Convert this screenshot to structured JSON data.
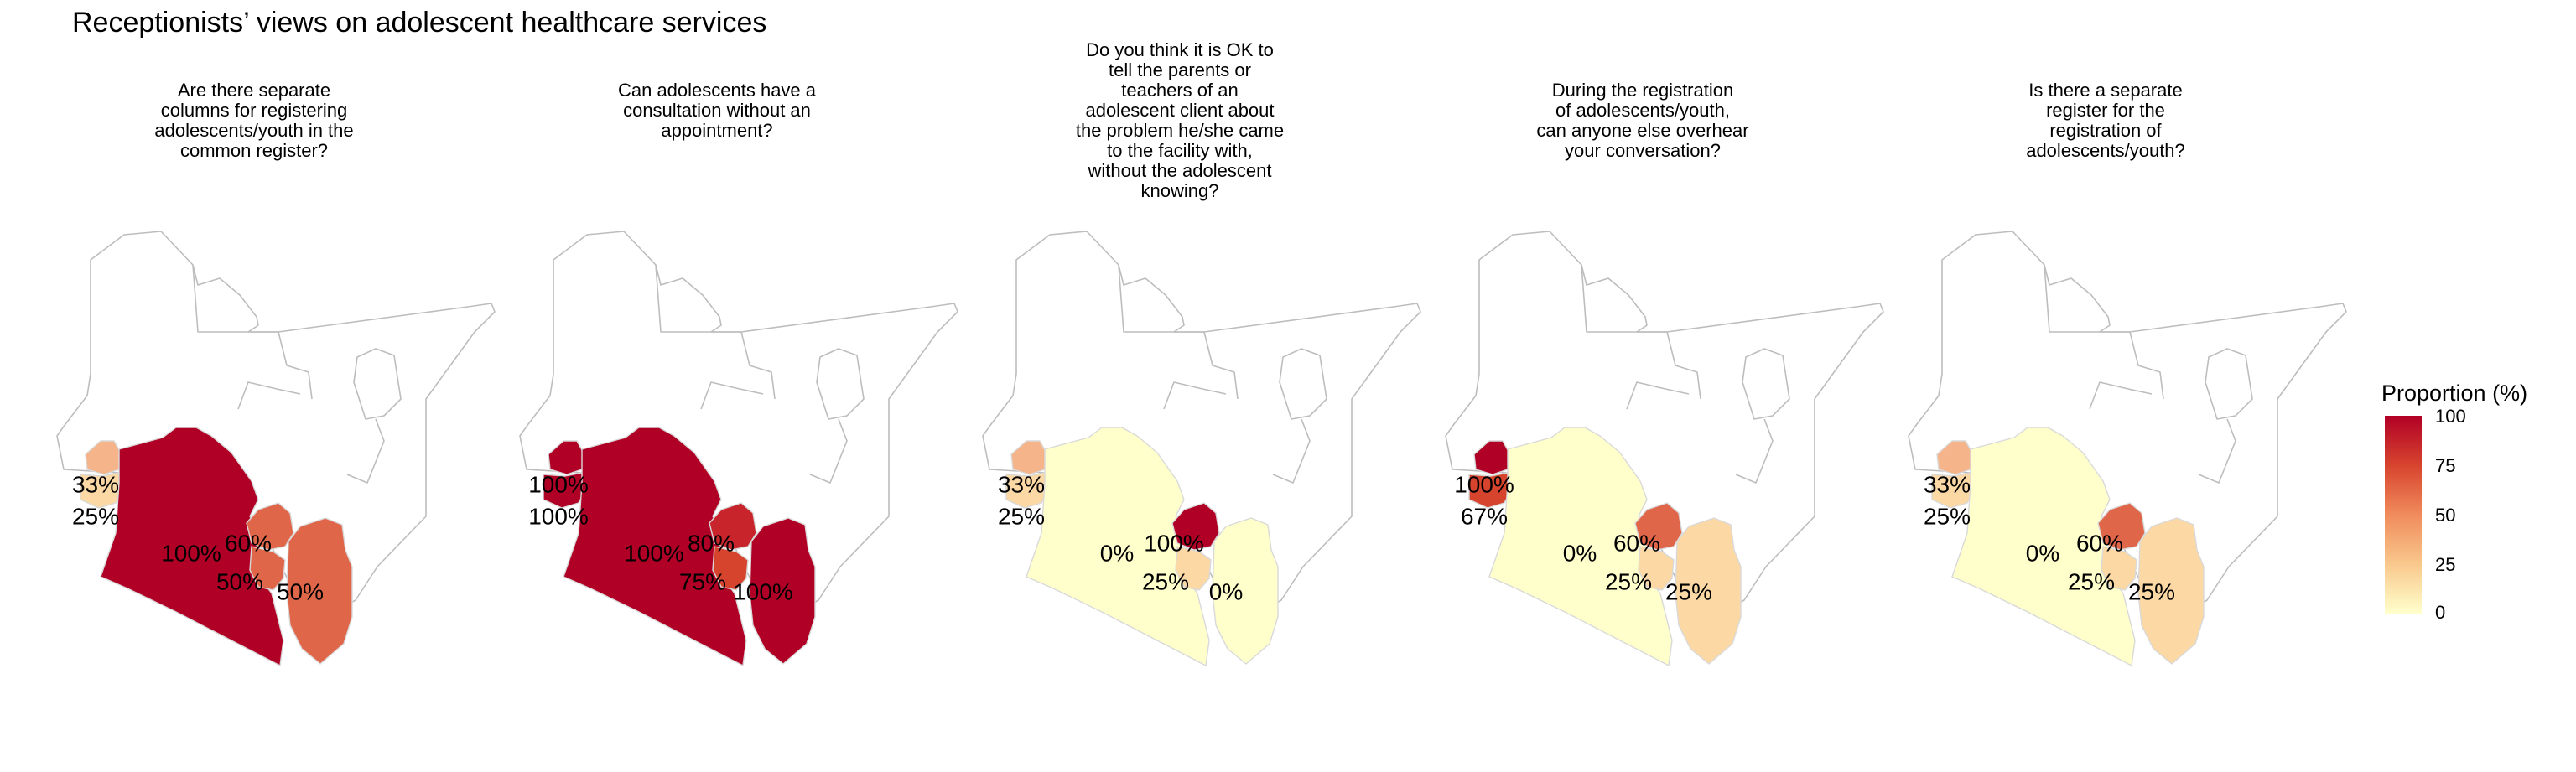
{
  "title": "Receptionists’ views on adolescent healthcare services",
  "legend": {
    "title": "Proportion (%)",
    "ticks": [
      "100",
      "75",
      "50",
      "25",
      "0"
    ],
    "colors": {
      "high": "#b10026",
      "mid_high": "#d7442e",
      "mid": "#f08b5c",
      "mid_low": "#f9c88d",
      "low": "#ffffcc"
    }
  },
  "panels": [
    {
      "title": "Are there separate\ncolumns for registering\nadolescents/youth in the\ncommon register?",
      "labels": [
        "33%",
        "25%",
        "100%",
        "60%",
        "50%",
        "50%"
      ]
    },
    {
      "title": "Can adolescents have a\nconsultation without an\nappointment?",
      "labels": [
        "100%",
        "100%",
        "100%",
        "80%",
        "75%",
        "100%"
      ]
    },
    {
      "title": "Do you think it is OK to\ntell the parents or\nteachers of an\nadolescent client about\nthe problem he/she came\nto the facility with,\nwithout the adolescent\nknowing?",
      "labels": [
        "33%",
        "25%",
        "0%",
        "100%",
        "25%",
        "0%"
      ]
    },
    {
      "title": "During the registration\nof adolescents/youth,\ncan anyone else overhear\nyour conversation?",
      "labels": [
        "100%",
        "67%",
        "0%",
        "60%",
        "25%",
        "25%"
      ]
    },
    {
      "title": "Is there a separate\nregister for the\nregistration of\nadolescents/youth?",
      "labels": [
        "33%",
        "25%",
        "0%",
        "60%",
        "25%",
        "25%"
      ]
    }
  ],
  "chart_data": {
    "type": "choropleth",
    "title": "Receptionists’ views on adolescent healthcare services",
    "legend_title": "Proportion (%)",
    "scale": [
      0,
      100
    ],
    "legend_position": "right",
    "panels": [
      {
        "question": "Are there separate columns for registering adolescents/youth in the common register?",
        "region_values": {
          "west_north": 33,
          "west_south": 25,
          "rift": 100,
          "central": 60,
          "nairobi": 50,
          "eastern": 50
        }
      },
      {
        "question": "Can adolescents have a consultation without an appointment?",
        "region_values": {
          "west_north": 100,
          "west_south": 100,
          "rift": 100,
          "central": 80,
          "nairobi": 75,
          "eastern": 100
        }
      },
      {
        "question": "Do you think it is OK to tell the parents or teachers of an adolescent client about the problem he/she came to the facility with, without the adolescent knowing?",
        "region_values": {
          "west_north": 33,
          "west_south": 25,
          "rift": 0,
          "central": 100,
          "nairobi": 25,
          "eastern": 0
        }
      },
      {
        "question": "During the registration of adolescents/youth, can anyone else overhear your conversation?",
        "region_values": {
          "west_north": 100,
          "west_south": 67,
          "rift": 0,
          "central": 60,
          "nairobi": 25,
          "eastern": 25
        }
      },
      {
        "question": "Is there a separate register for the registration of adolescents/youth?",
        "region_values": {
          "west_north": 33,
          "west_south": 25,
          "rift": 0,
          "central": 60,
          "nairobi": 25,
          "eastern": 25
        }
      }
    ]
  }
}
